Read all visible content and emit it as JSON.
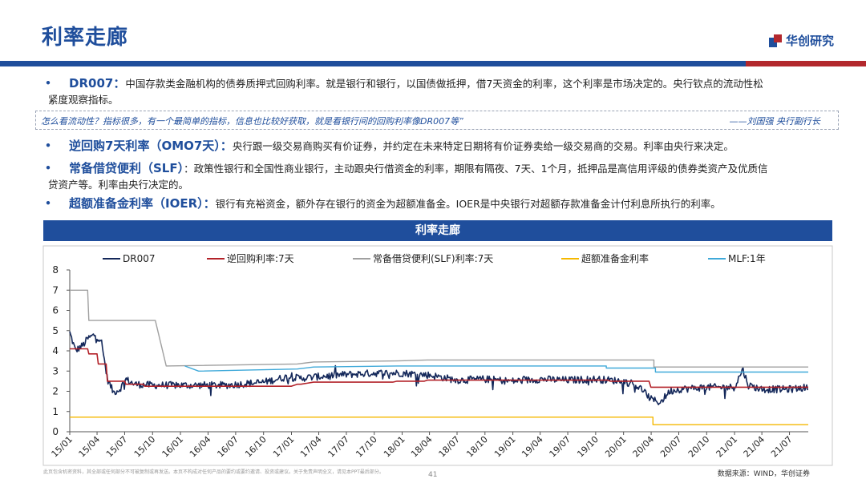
{
  "page": {
    "title": "利率走廊",
    "logo_text": "华创研究",
    "page_number": "41",
    "footnote": "此页包含机密资料，其全部或任何部分不可被复制或再发送。本页不构成对任何产品的要约或要约邀请、投资或建议。关于免责声明全文，请见本PPT最后部分。",
    "source": "数据来源：WIND，华创证券"
  },
  "colors": {
    "brand_blue": "#1f4e9c",
    "accent_red": "#b3282d"
  },
  "bullets": [
    {
      "term": "DR007：",
      "text": "中国存款类金融机构的债券质押式回购利率。就是银行和银行，以国债做抵押，借7天资金的利率，这个利率是市场决定的。央行钦点的流动性松",
      "cont": "紧度观察指标。"
    },
    {
      "term": "逆回购7天利率（OMO7天）：",
      "text": "央行跟一级交易商购买有价证券，并约定在未来特定日期将有价证券卖给一级交易商的交易。利率由央行来决定。"
    },
    {
      "term": "常备借贷便利（SLF）",
      "text": "：政策性银行和全国性商业银行，主动跟央行借资金的利率，期限有隔夜、7天、1个月，抵押品是高信用评级的债券类资产及优质信",
      "cont": "贷资产等。利率由央行决定的。"
    },
    {
      "term": "超额准备金利率（IOER）：",
      "text": "银行有充裕资金，额外存在银行的资金为超额准备金。IOER是中央银行对超额存款准备金计付利息所执行的利率。"
    }
  ],
  "quote": {
    "text": "怎么看流动性？指标很多，有一个最简单的指标，信息也比较好获取，就是看银行间的回购利率像DR007等”",
    "source": "——刘国强  央行副行长"
  },
  "chart_header": "利率走廊",
  "chart_data": {
    "type": "line",
    "ylim": [
      0,
      8
    ],
    "yticks": [
      "0",
      "1",
      "2",
      "3",
      "4",
      "5",
      "6",
      "7",
      "8"
    ],
    "xlim": [
      "2015-01-01",
      "2021-09-01"
    ],
    "xticks": [
      "15/01",
      "15/04",
      "15/07",
      "15/10",
      "16/01",
      "16/04",
      "16/07",
      "16/10",
      "17/01",
      "17/04",
      "17/07",
      "17/10",
      "18/01",
      "18/04",
      "18/07",
      "18/10",
      "19/01",
      "19/04",
      "19/07",
      "19/10",
      "20/01",
      "20/04",
      "20/07",
      "20/10",
      "21/01",
      "21/04",
      "21/07"
    ],
    "legend_position": "top",
    "series": [
      {
        "name": "DR007",
        "color": "#14285a",
        "width": 1.6,
        "noise": 0.18,
        "points": [
          [
            "2015-01-01",
            4.9
          ],
          [
            "2015-01-20",
            4.0
          ],
          [
            "2015-02-15",
            4.3
          ],
          [
            "2015-03-01",
            4.6
          ],
          [
            "2015-03-25",
            4.8
          ],
          [
            "2015-04-15",
            4.5
          ],
          [
            "2015-05-05",
            2.6
          ],
          [
            "2015-05-25",
            1.95
          ],
          [
            "2015-06-15",
            2.1
          ],
          [
            "2015-07-05",
            2.6
          ],
          [
            "2015-08-01",
            2.35
          ],
          [
            "2015-10-01",
            2.3
          ],
          [
            "2016-01-01",
            2.3
          ],
          [
            "2016-06-01",
            2.3
          ],
          [
            "2016-10-01",
            2.45
          ],
          [
            "2016-12-15",
            2.7
          ],
          [
            "2017-02-01",
            2.65
          ],
          [
            "2017-06-01",
            2.8
          ],
          [
            "2017-10-01",
            2.9
          ],
          [
            "2018-01-01",
            2.9
          ],
          [
            "2018-04-01",
            2.8
          ],
          [
            "2018-07-01",
            2.55
          ],
          [
            "2018-10-01",
            2.6
          ],
          [
            "2019-01-01",
            2.5
          ],
          [
            "2019-04-01",
            2.6
          ],
          [
            "2019-07-01",
            2.55
          ],
          [
            "2019-10-01",
            2.6
          ],
          [
            "2020-01-01",
            2.5
          ],
          [
            "2020-02-10",
            2.3
          ],
          [
            "2020-03-01",
            2.1
          ],
          [
            "2020-04-01",
            1.6
          ],
          [
            "2020-05-01",
            1.45
          ],
          [
            "2020-06-01",
            2.0
          ],
          [
            "2020-07-01",
            2.1
          ],
          [
            "2020-10-01",
            2.2
          ],
          [
            "2021-01-01",
            2.2
          ],
          [
            "2021-01-28",
            3.1
          ],
          [
            "2021-02-15",
            2.3
          ],
          [
            "2021-04-01",
            2.1
          ],
          [
            "2021-07-01",
            2.1
          ],
          [
            "2021-09-01",
            2.2
          ]
        ]
      },
      {
        "name": "逆回购利率:7天",
        "color": "#b32229",
        "width": 1.6,
        "points": [
          [
            "2015-01-01",
            4.1
          ],
          [
            "2015-03-01",
            4.1
          ],
          [
            "2015-03-05",
            3.85
          ],
          [
            "2015-04-01",
            3.85
          ],
          [
            "2015-04-05",
            3.35
          ],
          [
            "2015-05-01",
            3.35
          ],
          [
            "2015-05-05",
            2.5
          ],
          [
            "2015-07-01",
            2.5
          ],
          [
            "2015-07-05",
            2.35
          ],
          [
            "2015-09-01",
            2.35
          ],
          [
            "2015-09-05",
            2.25
          ],
          [
            "2016-12-31",
            2.25
          ],
          [
            "2017-01-20",
            2.35
          ],
          [
            "2017-02-01",
            2.35
          ],
          [
            "2017-03-15",
            2.45
          ],
          [
            "2017-12-01",
            2.45
          ],
          [
            "2017-12-15",
            2.5
          ],
          [
            "2018-03-15",
            2.5
          ],
          [
            "2018-03-25",
            2.55
          ],
          [
            "2019-11-10",
            2.55
          ],
          [
            "2019-11-18",
            2.5
          ],
          [
            "2020-03-25",
            2.5
          ],
          [
            "2020-03-31",
            2.2
          ],
          [
            "2021-09-01",
            2.2
          ]
        ]
      },
      {
        "name": "常备借贷便利(SLF)利率:7天",
        "color": "#a0a0a0",
        "width": 1.4,
        "points": [
          [
            "2015-01-01",
            7.0
          ],
          [
            "2015-03-01",
            7.0
          ],
          [
            "2015-03-05",
            5.5
          ],
          [
            "2015-10-10",
            5.5
          ],
          [
            "2015-11-15",
            3.25
          ],
          [
            "2017-01-20",
            3.35
          ],
          [
            "2017-03-15",
            3.45
          ],
          [
            "2017-12-15",
            3.5
          ],
          [
            "2018-03-25",
            3.55
          ],
          [
            "2020-04-10",
            3.55
          ],
          [
            "2020-04-10",
            3.2
          ],
          [
            "2021-09-01",
            3.2
          ]
        ]
      },
      {
        "name": "超额准备金利率",
        "color": "#f5b800",
        "width": 1.4,
        "points": [
          [
            "2015-01-01",
            0.72
          ],
          [
            "2020-04-07",
            0.72
          ],
          [
            "2020-04-07",
            0.35
          ],
          [
            "2021-09-01",
            0.35
          ]
        ]
      },
      {
        "name": "MLF:1年",
        "color": "#3fa9d9",
        "width": 1.4,
        "points": [
          [
            "2016-01-15",
            3.25
          ],
          [
            "2016-03-01",
            3.0
          ],
          [
            "2017-01-20",
            3.1
          ],
          [
            "2017-03-15",
            3.2
          ],
          [
            "2017-12-15",
            3.25
          ],
          [
            "2019-11-05",
            3.25
          ],
          [
            "2019-11-05",
            3.15
          ],
          [
            "2020-02-17",
            3.15
          ],
          [
            "2020-02-17",
            3.15
          ],
          [
            "2020-04-15",
            3.15
          ],
          [
            "2020-04-15",
            2.95
          ],
          [
            "2021-09-01",
            2.95
          ]
        ]
      }
    ]
  }
}
